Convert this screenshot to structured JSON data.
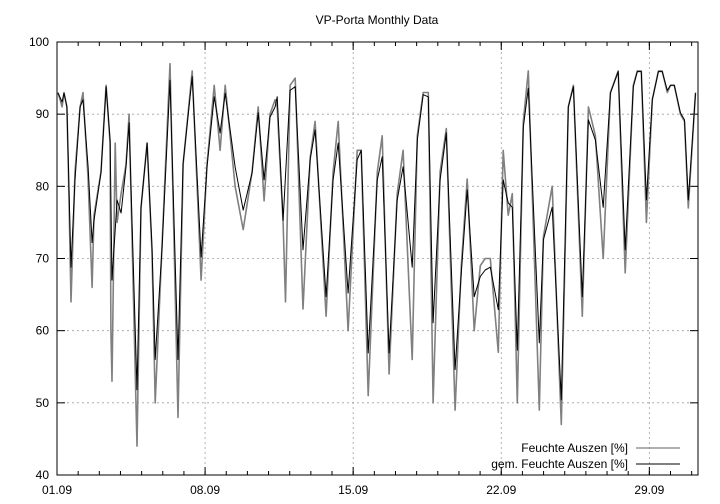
{
  "chart_data": {
    "type": "line",
    "title": "VP-Porta Monthly Data",
    "xlabel": "",
    "ylabel": "",
    "x_unit": "days since 01.09",
    "xlim": [
      0,
      30.3
    ],
    "ylim": [
      40,
      100
    ],
    "yticks": [
      40,
      50,
      60,
      70,
      80,
      90,
      100
    ],
    "xticks": [
      {
        "value": 0,
        "label": "01.09"
      },
      {
        "value": 7,
        "label": "08.09"
      },
      {
        "value": 14,
        "label": "15.09"
      },
      {
        "value": 21,
        "label": "22.09"
      },
      {
        "value": 28,
        "label": "29.09"
      }
    ],
    "grid": true,
    "legend_position": "bottom-right",
    "series": [
      {
        "name": "Feuchte Auszen [%]",
        "color": "#808080",
        "points": [
          [
            0.05,
            93
          ],
          [
            0.24,
            91
          ],
          [
            0.33,
            93
          ],
          [
            0.47,
            91
          ],
          [
            0.55,
            81
          ],
          [
            0.66,
            64
          ],
          [
            0.85,
            82
          ],
          [
            1.09,
            91
          ],
          [
            1.23,
            93
          ],
          [
            1.47,
            81
          ],
          [
            1.66,
            66
          ],
          [
            1.75,
            76
          ],
          [
            2.08,
            82
          ],
          [
            2.32,
            94
          ],
          [
            2.51,
            86
          ],
          [
            2.55,
            60
          ],
          [
            2.6,
            53
          ],
          [
            2.75,
            86
          ],
          [
            2.84,
            75
          ],
          [
            3.03,
            79
          ],
          [
            3.26,
            83
          ],
          [
            3.41,
            90
          ],
          [
            3.78,
            44
          ],
          [
            3.97,
            77
          ],
          [
            4.26,
            86
          ],
          [
            4.49,
            71
          ],
          [
            4.64,
            50
          ],
          [
            4.97,
            72
          ],
          [
            5.34,
            97
          ],
          [
            5.72,
            48
          ],
          [
            5.96,
            83
          ],
          [
            6.39,
            96
          ],
          [
            6.81,
            67
          ],
          [
            7.09,
            83
          ],
          [
            7.43,
            94
          ],
          [
            7.71,
            85
          ],
          [
            7.95,
            94
          ],
          [
            8.42,
            80
          ],
          [
            8.8,
            74
          ],
          [
            9.22,
            82
          ],
          [
            9.51,
            91
          ],
          [
            9.79,
            78
          ],
          [
            10.07,
            90
          ],
          [
            10.31,
            92
          ],
          [
            10.41,
            91
          ],
          [
            10.69,
            75
          ],
          [
            10.8,
            64
          ],
          [
            11.02,
            94
          ],
          [
            11.26,
            95
          ],
          [
            11.63,
            63
          ],
          [
            11.97,
            84
          ],
          [
            12.2,
            89
          ],
          [
            12.72,
            62
          ],
          [
            13.05,
            82
          ],
          [
            13.29,
            89
          ],
          [
            13.76,
            60
          ],
          [
            14.19,
            85
          ],
          [
            14.38,
            85
          ],
          [
            14.71,
            51
          ],
          [
            15.14,
            82
          ],
          [
            15.37,
            87
          ],
          [
            15.7,
            54
          ],
          [
            16.08,
            79
          ],
          [
            16.36,
            85
          ],
          [
            16.79,
            56
          ],
          [
            17.03,
            87
          ],
          [
            17.31,
            93
          ],
          [
            17.55,
            93
          ],
          [
            17.78,
            50
          ],
          [
            18.11,
            82
          ],
          [
            18.4,
            88
          ],
          [
            18.82,
            49
          ],
          [
            19.11,
            69
          ],
          [
            19.39,
            81
          ],
          [
            19.72,
            60
          ],
          [
            20.01,
            69
          ],
          [
            20.24,
            70
          ],
          [
            20.48,
            70
          ],
          [
            20.86,
            57
          ],
          [
            21.09,
            85
          ],
          [
            21.33,
            76
          ],
          [
            21.52,
            79
          ],
          [
            21.76,
            50
          ],
          [
            22.04,
            89
          ],
          [
            22.28,
            96
          ],
          [
            22.8,
            49
          ],
          [
            22.99,
            73
          ],
          [
            23.41,
            80
          ],
          [
            23.84,
            47
          ],
          [
            24.17,
            91
          ],
          [
            24.41,
            94
          ],
          [
            24.83,
            62
          ],
          [
            25.12,
            91
          ],
          [
            25.45,
            87
          ],
          [
            25.82,
            70
          ],
          [
            26.16,
            93
          ],
          [
            26.53,
            96
          ],
          [
            26.86,
            68
          ],
          [
            27.24,
            94
          ],
          [
            27.43,
            96
          ],
          [
            27.62,
            96
          ],
          [
            27.86,
            75
          ],
          [
            28.14,
            92
          ],
          [
            28.43,
            96
          ],
          [
            28.61,
            96
          ],
          [
            28.85,
            93
          ],
          [
            29.0,
            94
          ],
          [
            29.18,
            94
          ],
          [
            29.47,
            90
          ],
          [
            29.66,
            89
          ],
          [
            29.84,
            77
          ],
          [
            30.18,
            93
          ]
        ]
      },
      {
        "name": "gem. Feuchte Auszen [%]",
        "color": "#000000",
        "points": [
          [
            0.05,
            92.9
          ],
          [
            0.24,
            91.7
          ],
          [
            0.33,
            92.9
          ],
          [
            0.47,
            91
          ],
          [
            0.66,
            68.8
          ],
          [
            0.85,
            80.9
          ],
          [
            1.09,
            91
          ],
          [
            1.23,
            92
          ],
          [
            1.47,
            82.7
          ],
          [
            1.66,
            72.2
          ],
          [
            1.75,
            75.3
          ],
          [
            2.08,
            81.9
          ],
          [
            2.32,
            93.8
          ],
          [
            2.51,
            86.4
          ],
          [
            2.6,
            67
          ],
          [
            2.84,
            78.1
          ],
          [
            3.03,
            76.3
          ],
          [
            3.26,
            82.7
          ],
          [
            3.41,
            88.8
          ],
          [
            3.78,
            51.8
          ],
          [
            3.97,
            77.1
          ],
          [
            4.26,
            86
          ],
          [
            4.49,
            71.6
          ],
          [
            4.64,
            56
          ],
          [
            4.97,
            71.6
          ],
          [
            5.34,
            94.7
          ],
          [
            5.72,
            56
          ],
          [
            5.96,
            83.2
          ],
          [
            6.39,
            95.2
          ],
          [
            6.81,
            70.2
          ],
          [
            7.09,
            82.7
          ],
          [
            7.43,
            92.4
          ],
          [
            7.71,
            87.4
          ],
          [
            7.95,
            92.9
          ],
          [
            8.42,
            82.7
          ],
          [
            8.8,
            76.7
          ],
          [
            9.22,
            81.9
          ],
          [
            9.51,
            90.2
          ],
          [
            9.79,
            80.9
          ],
          [
            10.07,
            89.6
          ],
          [
            10.31,
            91
          ],
          [
            10.41,
            92.4
          ],
          [
            10.69,
            75.3
          ],
          [
            11.02,
            93.3
          ],
          [
            11.26,
            93.8
          ],
          [
            11.63,
            71.2
          ],
          [
            11.97,
            83.7
          ],
          [
            12.2,
            87.8
          ],
          [
            12.72,
            64.7
          ],
          [
            13.05,
            80.9
          ],
          [
            13.29,
            86
          ],
          [
            13.76,
            65.2
          ],
          [
            14.19,
            83.7
          ],
          [
            14.38,
            85
          ],
          [
            14.71,
            56.9
          ],
          [
            15.14,
            80.9
          ],
          [
            15.37,
            84.1
          ],
          [
            15.7,
            56.9
          ],
          [
            16.08,
            78.1
          ],
          [
            16.36,
            82.7
          ],
          [
            16.79,
            68.8
          ],
          [
            17.03,
            86.4
          ],
          [
            17.31,
            92.7
          ],
          [
            17.55,
            92.4
          ],
          [
            17.78,
            61.1
          ],
          [
            18.11,
            80.9
          ],
          [
            18.4,
            87.4
          ],
          [
            18.82,
            54.6
          ],
          [
            19.11,
            68
          ],
          [
            19.39,
            79.5
          ],
          [
            19.72,
            64.7
          ],
          [
            20.01,
            67.5
          ],
          [
            20.24,
            68.4
          ],
          [
            20.48,
            68.8
          ],
          [
            20.86,
            62.9
          ],
          [
            21.09,
            80.9
          ],
          [
            21.33,
            77.7
          ],
          [
            21.52,
            77.1
          ],
          [
            21.76,
            57.3
          ],
          [
            22.04,
            88.2
          ],
          [
            22.28,
            93.6
          ],
          [
            22.8,
            58.3
          ],
          [
            22.99,
            72.6
          ],
          [
            23.41,
            77.1
          ],
          [
            23.84,
            50.4
          ],
          [
            24.17,
            91
          ],
          [
            24.41,
            93.8
          ],
          [
            24.83,
            64.7
          ],
          [
            25.12,
            89.2
          ],
          [
            25.45,
            86.4
          ],
          [
            25.82,
            77.1
          ],
          [
            26.16,
            92.9
          ],
          [
            26.53,
            95.9
          ],
          [
            26.86,
            71.2
          ],
          [
            27.24,
            93.8
          ],
          [
            27.43,
            95.9
          ],
          [
            27.62,
            95.9
          ],
          [
            27.86,
            78.1
          ],
          [
            28.14,
            92
          ],
          [
            28.43,
            95.9
          ],
          [
            28.61,
            95.9
          ],
          [
            28.85,
            93.3
          ],
          [
            29.0,
            94
          ],
          [
            29.18,
            94
          ],
          [
            29.47,
            90.2
          ],
          [
            29.66,
            89.2
          ],
          [
            29.84,
            78.1
          ],
          [
            30.18,
            92.9
          ]
        ]
      }
    ]
  }
}
